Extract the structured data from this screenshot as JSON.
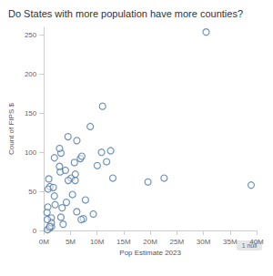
{
  "chart_data": {
    "type": "scatter",
    "title": "Do States with more population have more counties?",
    "x_label": "Pop Estimate 2023",
    "y_label": "Count of FIPS $",
    "annotation": "1 null",
    "x": [
      5.108,
      0.733,
      7.431,
      3.068,
      38.965,
      5.877,
      3.617,
      1.032,
      0.679,
      22.61,
      11.029,
      1.435,
      1.964,
      12.549,
      6.862,
      3.207,
      2.94,
      4.526,
      4.573,
      1.395,
      6.18,
      7.001,
      10.037,
      5.737,
      2.939,
      6.196,
      1.133,
      1.978,
      3.194,
      1.402,
      9.29,
      2.114,
      19.571,
      10.835,
      0.784,
      11.785,
      4.053,
      4.233,
      12.961,
      1.095,
      5.373,
      0.919,
      7.126,
      30.503,
      3.417,
      0.647,
      8.715,
      7.812,
      1.77,
      5.911,
      0.584
    ],
    "values": [
      67,
      30,
      15,
      75,
      58,
      64,
      8,
      3,
      1,
      67,
      159,
      5,
      44,
      102,
      92,
      99,
      105,
      120,
      64,
      16,
      24,
      14,
      83,
      87,
      82,
      115,
      56,
      93,
      17,
      10,
      21,
      33,
      62,
      100,
      53,
      88,
      77,
      36,
      67,
      5,
      46,
      66,
      95,
      254,
      29,
      14,
      133,
      39,
      55,
      72,
      23
    ],
    "color": "#4e79a7",
    "marker": "circle_open",
    "grid": false,
    "xlim": [
      0,
      40
    ],
    "xticks": [
      {
        "value": 0,
        "label": "0M"
      },
      {
        "value": 5,
        "label": "5M"
      },
      {
        "value": 10,
        "label": "10M"
      },
      {
        "value": 15,
        "label": "15M"
      },
      {
        "value": 20,
        "label": "20M"
      },
      {
        "value": 25,
        "label": "25M"
      },
      {
        "value": 30,
        "label": "30M"
      },
      {
        "value": 35,
        "label": "35M"
      },
      {
        "value": 40,
        "label": "40M"
      }
    ],
    "ylim": [
      0,
      260
    ],
    "yticks": [
      0,
      50,
      100,
      150,
      200,
      250
    ]
  }
}
